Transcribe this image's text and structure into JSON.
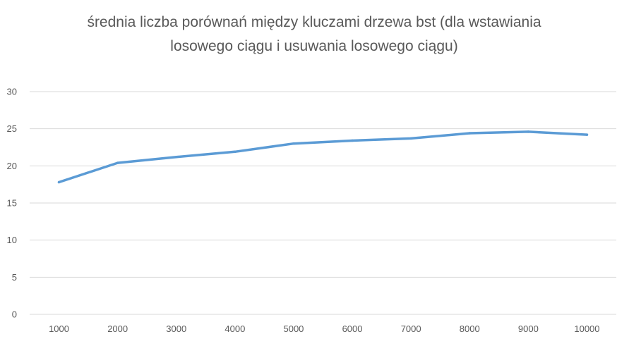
{
  "chart_data": {
    "type": "line",
    "title_lines": [
      "średnia liczba porównań między kluczami drzewa bst (dla wstawiania",
      "losowego ciągu i usuwania losowego ciągu)"
    ],
    "categories": [
      "1000",
      "2000",
      "3000",
      "4000",
      "5000",
      "6000",
      "7000",
      "8000",
      "9000",
      "10000"
    ],
    "series": [
      {
        "values": [
          17.8,
          20.4,
          21.2,
          21.9,
          23.0,
          23.4,
          23.7,
          24.4,
          24.6,
          24.2
        ],
        "color": "#5b9bd5"
      }
    ],
    "ylim": [
      0,
      30
    ],
    "y_ticks": [
      "0",
      "5",
      "10",
      "15",
      "20",
      "25",
      "30"
    ],
    "grid": true,
    "legend": "none"
  }
}
